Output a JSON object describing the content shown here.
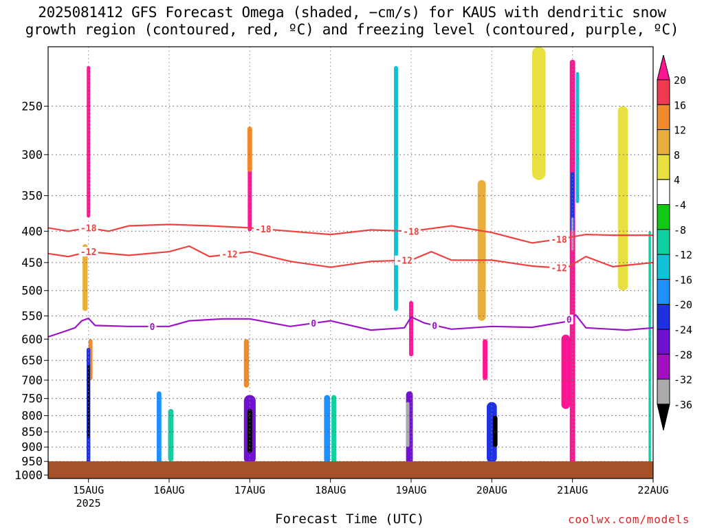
{
  "title_line1": "2025081412 GFS Forecast Omega (shaded, −cm/s) for KAUS with dendritic snow",
  "title_line2": "growth region (contoured, red, ºC) and freezing level (contoured, purple, ºC)",
  "xlabel": "Forecast Time (UTC)",
  "credit": "coolwx.com/models",
  "chart_data": {
    "type": "heatmap",
    "title": "2025081412 GFS Forecast Omega (shaded, −cm/s) for KAUS with dendritic snow growth region (contoured, red, ºC) and freezing level (contoured, purple, ºC)",
    "xlabel": "Forecast Time (UTC)",
    "ylabel": "",
    "x_ticks": [
      {
        "t": 0,
        "label": "15AUG",
        "sublabel": "2025"
      },
      {
        "t": 24,
        "label": "16AUG"
      },
      {
        "t": 48,
        "label": "17AUG"
      },
      {
        "t": 72,
        "label": "18AUG"
      },
      {
        "t": 96,
        "label": "19AUG"
      },
      {
        "t": 120,
        "label": "20AUG"
      },
      {
        "t": 144,
        "label": "21AUG"
      },
      {
        "t": 168,
        "label": "22AUG"
      }
    ],
    "x_range_hours": [
      -12,
      168
    ],
    "y_ticks": [
      250,
      300,
      350,
      400,
      450,
      500,
      550,
      600,
      650,
      700,
      750,
      800,
      850,
      900,
      950,
      1000
    ],
    "y_range_hPa": [
      200,
      1013
    ],
    "y_axis": "log pressure (hPa), decreasing upward",
    "grid": true,
    "colorbar": {
      "labels": [
        "20",
        "16",
        "12",
        "8",
        "4",
        "-4",
        "-8",
        "-12",
        "-16",
        "-20",
        "-24",
        "-28",
        "-32",
        "-36"
      ],
      "colors": [
        "#ff1493",
        "#f03a50",
        "#f08a2a",
        "#eaae3a",
        "#e8e040",
        "#ffffff",
        "#12c812",
        "#0fd0a0",
        "#12c0d8",
        "#1e90ff",
        "#1e30e0",
        "#7010d0",
        "#a010c0",
        "#aaaaaa",
        "#000000"
      ]
    },
    "omega_cells": [
      {
        "t": 0,
        "p0": 215,
        "p1": 380,
        "v": 24,
        "w": 1.0
      },
      {
        "t": 0.6,
        "p0": 600,
        "p1": 700,
        "v": 14,
        "w": 1.2
      },
      {
        "t": 0,
        "p0": 620,
        "p1": 960,
        "v": -22,
        "w": 1.1
      },
      {
        "t": 0,
        "p0": 660,
        "p1": 870,
        "v": -38,
        "w": 0.5
      },
      {
        "t": -1,
        "p0": 420,
        "p1": 540,
        "v": 10,
        "w": 1.5
      },
      {
        "t": 21,
        "p0": 730,
        "p1": 960,
        "v": -18,
        "w": 1.4
      },
      {
        "t": 24.5,
        "p0": 780,
        "p1": 950,
        "v": -10,
        "w": 1.6
      },
      {
        "t": 47,
        "p0": 600,
        "p1": 720,
        "v": 14,
        "w": 1.5
      },
      {
        "t": 48,
        "p0": 300,
        "p1": 400,
        "v": 22,
        "w": 1.2
      },
      {
        "t": 48,
        "p0": 270,
        "p1": 320,
        "v": 12,
        "w": 1.4
      },
      {
        "t": 48,
        "p0": 740,
        "p1": 960,
        "v": -24,
        "w": 3.5
      },
      {
        "t": 48,
        "p0": 780,
        "p1": 920,
        "v": -38,
        "w": 1.4
      },
      {
        "t": 71,
        "p0": 740,
        "p1": 955,
        "v": -16,
        "w": 1.8
      },
      {
        "t": 73,
        "p0": 740,
        "p1": 955,
        "v": -8,
        "w": 1.4
      },
      {
        "t": 91.5,
        "p0": 215,
        "p1": 540,
        "v": -14,
        "w": 1.2
      },
      {
        "t": 96,
        "p0": 520,
        "p1": 640,
        "v": 20,
        "w": 1.2
      },
      {
        "t": 95.5,
        "p0": 730,
        "p1": 960,
        "v": -26,
        "w": 2.0
      },
      {
        "t": 95,
        "p0": 760,
        "p1": 900,
        "v": -34,
        "w": 1.0
      },
      {
        "t": 117,
        "p0": 330,
        "p1": 560,
        "v": 10,
        "w": 2.4
      },
      {
        "t": 118,
        "p0": 600,
        "p1": 700,
        "v": 22,
        "w": 1.4
      },
      {
        "t": 120,
        "p0": 760,
        "p1": 955,
        "v": -20,
        "w": 3.0
      },
      {
        "t": 121,
        "p0": 800,
        "p1": 900,
        "v": -38,
        "w": 1.4
      },
      {
        "t": 134,
        "p0": 200,
        "p1": 330,
        "v": 6,
        "w": 4.0
      },
      {
        "t": 142,
        "p0": 590,
        "p1": 780,
        "v": 22,
        "w": 2.6
      },
      {
        "t": 144,
        "p0": 210,
        "p1": 960,
        "v": 24,
        "w": 1.6
      },
      {
        "t": 145.5,
        "p0": 220,
        "p1": 360,
        "v": -12,
        "w": 1.0
      },
      {
        "t": 144,
        "p0": 320,
        "p1": 400,
        "v": -22,
        "w": 1.1
      },
      {
        "t": 144,
        "p0": 380,
        "p1": 430,
        "v": -34,
        "w": 0.6
      },
      {
        "t": 159,
        "p0": 250,
        "p1": 500,
        "v": 6,
        "w": 3.0
      },
      {
        "t": 167,
        "p0": 400,
        "p1": 960,
        "v": -8,
        "w": 0.7
      }
    ],
    "contours": [
      {
        "label": "-18",
        "color": "#f04040",
        "label_at": [
          0,
          52,
          96,
          140
        ],
        "points": [
          [
            -12,
            395
          ],
          [
            -6,
            400
          ],
          [
            0,
            395
          ],
          [
            6,
            400
          ],
          [
            12,
            392
          ],
          [
            24,
            390
          ],
          [
            36,
            392
          ],
          [
            48,
            395
          ],
          [
            60,
            400
          ],
          [
            72,
            405
          ],
          [
            84,
            398
          ],
          [
            96,
            400
          ],
          [
            108,
            392
          ],
          [
            120,
            402
          ],
          [
            132,
            418
          ],
          [
            140,
            412
          ],
          [
            148,
            405
          ],
          [
            156,
            406
          ],
          [
            168,
            406
          ]
        ]
      },
      {
        "label": "-12",
        "color": "#f04040",
        "label_at": [
          0,
          42,
          94,
          140
        ],
        "points": [
          [
            -12,
            435
          ],
          [
            -6,
            440
          ],
          [
            0,
            432
          ],
          [
            12,
            438
          ],
          [
            24,
            432
          ],
          [
            30,
            423
          ],
          [
            36,
            440
          ],
          [
            48,
            432
          ],
          [
            60,
            448
          ],
          [
            72,
            458
          ],
          [
            84,
            448
          ],
          [
            96,
            446
          ],
          [
            102,
            432
          ],
          [
            108,
            446
          ],
          [
            120,
            446
          ],
          [
            132,
            456
          ],
          [
            142,
            460
          ],
          [
            148,
            440
          ],
          [
            156,
            457
          ],
          [
            168,
            450
          ]
        ]
      },
      {
        "label": "0",
        "color": "#9b12c8",
        "label_at": [
          19,
          67,
          103,
          143
        ],
        "points": [
          [
            -12,
            595
          ],
          [
            -8,
            585
          ],
          [
            -4,
            575
          ],
          [
            -2,
            560
          ],
          [
            0,
            555
          ],
          [
            2,
            570
          ],
          [
            12,
            572
          ],
          [
            24,
            572
          ],
          [
            30,
            560
          ],
          [
            40,
            556
          ],
          [
            48,
            556
          ],
          [
            60,
            572
          ],
          [
            72,
            560
          ],
          [
            84,
            580
          ],
          [
            94,
            575
          ],
          [
            96,
            552
          ],
          [
            100,
            565
          ],
          [
            108,
            578
          ],
          [
            120,
            572
          ],
          [
            132,
            574
          ],
          [
            142,
            562
          ],
          [
            145,
            548
          ],
          [
            148,
            575
          ],
          [
            160,
            580
          ],
          [
            168,
            575
          ]
        ]
      }
    ]
  }
}
